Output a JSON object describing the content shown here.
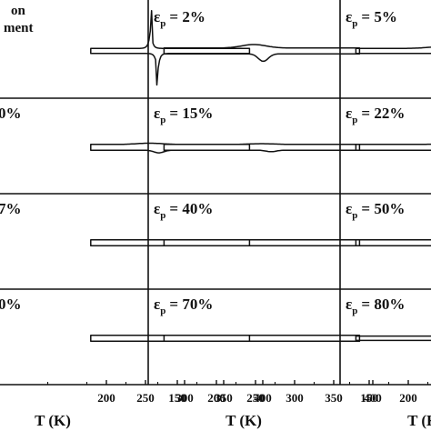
{
  "chart_data": {
    "type": "line",
    "grid": false,
    "layout": "4x3 panel grid (figure cropped at left and right edges)",
    "xlabel": "T (K)",
    "x_ticks": [
      150,
      200,
      250,
      300,
      350,
      400
    ],
    "x_ticks_visible_left_column": [
      200,
      250,
      300,
      350,
      400
    ],
    "x_ticks_visible_right_column": [
      150,
      200
    ],
    "xlim": [
      100,
      400
    ],
    "ylim": [
      -1,
      1
    ],
    "panels": [
      {
        "label_lines": [
          "on",
          "ment"
        ],
        "t_min": 180,
        "t_max": 383,
        "peak_T": 258,
        "peak_height": 0.82,
        "loop_halfwidth": 0.1,
        "style": "sharp"
      },
      {
        "label_prefix": "ε",
        "label_sub": "p",
        "label_value": "= 2%",
        "t_min": 133,
        "t_max": 383,
        "peak_T": 248,
        "peak_height": 0.2,
        "loop_halfwidth": 0.08,
        "style": "broad"
      },
      {
        "label_prefix": "ε",
        "label_sub": "p",
        "label_value": "= 5%",
        "t_min": 133,
        "t_max": 383,
        "peak_T": 240,
        "peak_height": 0.09,
        "loop_halfwidth": 0.07,
        "style": "broad"
      },
      {
        "label_value": "0%",
        "t_min": 180,
        "t_max": 383,
        "peak_T": 255,
        "peak_height": 0.07,
        "loop_halfwidth": 0.08,
        "style": "broad"
      },
      {
        "label_prefix": "ε",
        "label_sub": "p",
        "label_value": "= 15%",
        "t_min": 133,
        "t_max": 383,
        "peak_T": 258,
        "peak_height": 0.04,
        "loop_halfwidth": 0.08,
        "style": "broad"
      },
      {
        "label_prefix": "ε",
        "label_sub": "p",
        "label_value": "= 22%",
        "t_min": 133,
        "t_max": 383,
        "peak_T": 250,
        "peak_height": 0.03,
        "loop_halfwidth": 0.08,
        "style": "broad"
      },
      {
        "label_value": "7%",
        "t_min": 180,
        "t_max": 383,
        "peak_T": 250,
        "peak_height": 0.0,
        "loop_halfwidth": 0.08,
        "style": "broad"
      },
      {
        "label_prefix": "ε",
        "label_sub": "p",
        "label_value": "= 40%",
        "t_min": 133,
        "t_max": 383,
        "peak_T": 250,
        "peak_height": 0.0,
        "loop_halfwidth": 0.08,
        "style": "broad"
      },
      {
        "label_prefix": "ε",
        "label_sub": "p",
        "label_value": "= 50%",
        "t_min": 133,
        "t_max": 383,
        "peak_T": 250,
        "peak_height": 0.0,
        "loop_halfwidth": 0.08,
        "style": "broad"
      },
      {
        "label_value": "0%",
        "t_min": 180,
        "t_max": 383,
        "peak_T": 250,
        "peak_height": 0.0,
        "loop_halfwidth": 0.08,
        "style": "broad"
      },
      {
        "label_prefix": "ε",
        "label_sub": "p",
        "label_value": "= 70%",
        "t_min": 133,
        "t_max": 383,
        "peak_T": 250,
        "peak_height": 0.0,
        "loop_halfwidth": 0.08,
        "style": "broad"
      },
      {
        "label_prefix": "ε",
        "label_sub": "p",
        "label_value": "= 80%",
        "t_min": 133,
        "t_max": 383,
        "peak_T": 250,
        "peak_height": 0.0,
        "loop_halfwidth": 0.06,
        "style": "broad"
      }
    ]
  }
}
